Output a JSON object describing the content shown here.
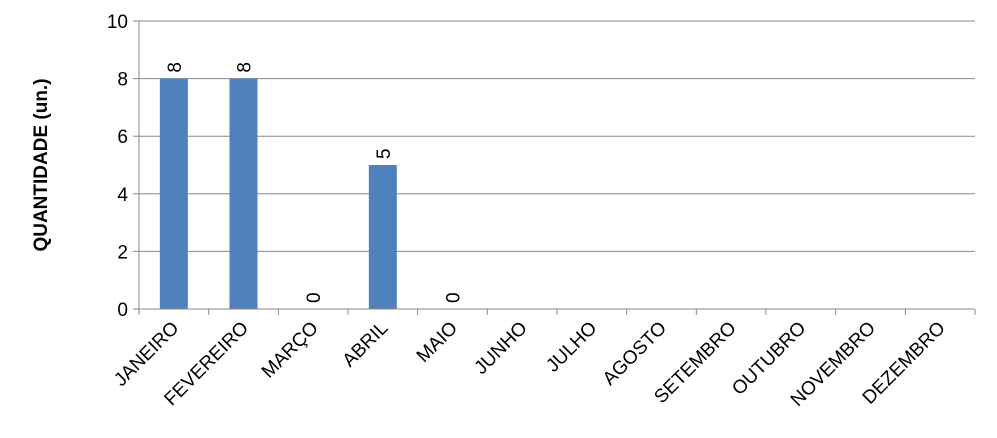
{
  "chart_data": {
    "type": "bar",
    "title": "",
    "xlabel": "",
    "ylabel": "QUANTIDADE (un.)",
    "ylim": [
      0,
      10
    ],
    "yticks": [
      0,
      2,
      4,
      6,
      8,
      10
    ],
    "grid": true,
    "legend": "none",
    "categories": [
      "JANEIRO",
      "FEVEREIRO",
      "MARÇO",
      "ABRIL",
      "MAIO",
      "JUNHO",
      "JULHO",
      "AGOSTO",
      "SETEMBRO",
      "OUTUBRO",
      "NOVEMBRO",
      "DEZEMBRO"
    ],
    "values": [
      8,
      8,
      0,
      5,
      0,
      null,
      null,
      null,
      null,
      null,
      null,
      null
    ],
    "data_labels": [
      "8",
      "8",
      "0",
      "5",
      "0",
      "",
      "",
      "",
      "",
      "",
      "",
      ""
    ],
    "colors": {
      "bar": "#4F81BD",
      "grid": "#888888",
      "axis": "#888888"
    }
  }
}
